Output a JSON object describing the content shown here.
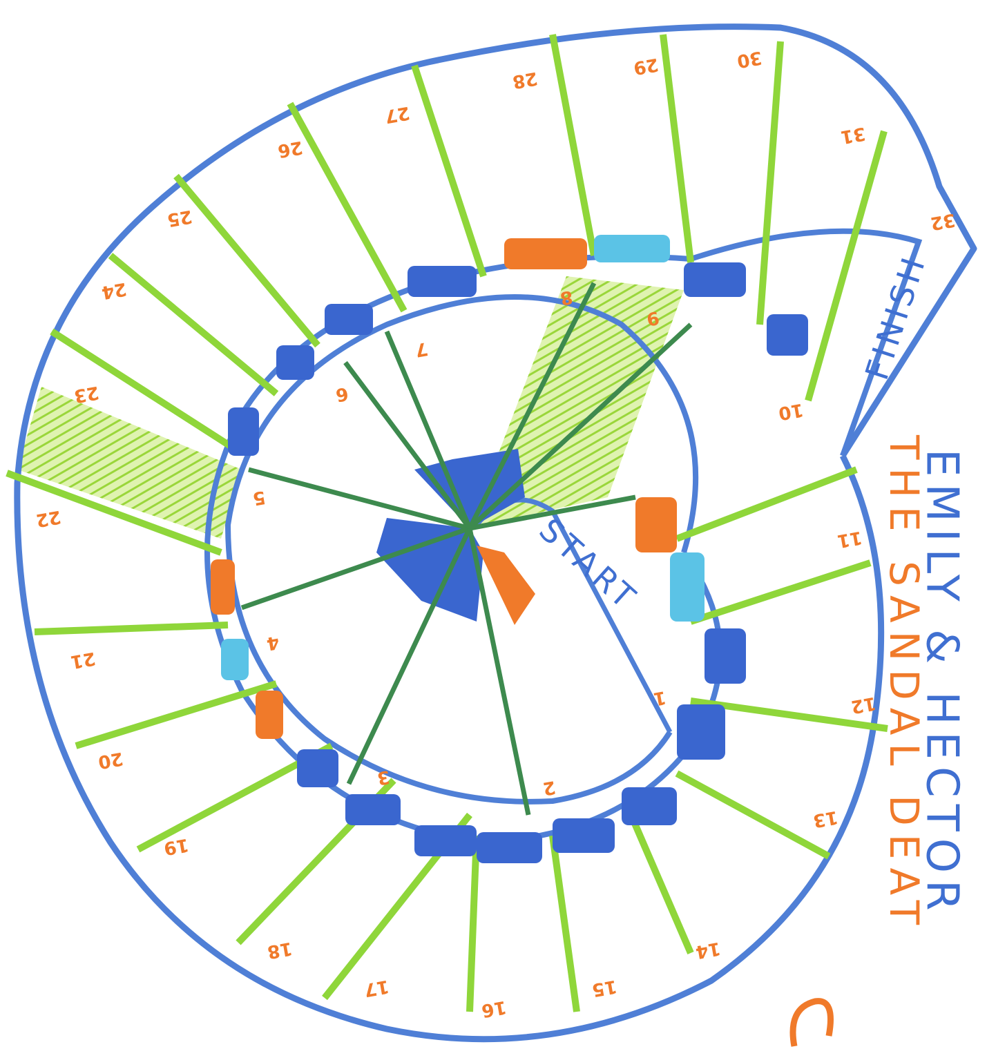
{
  "title": "EMILY & HECTOR",
  "subtitle": "THE SANDAL DEAT",
  "start": "START",
  "finish": "FINISH",
  "spaces": [
    "1",
    "2",
    "3",
    "4",
    "5",
    "6",
    "7",
    "8",
    "9",
    "10",
    "11",
    "12",
    "13",
    "14",
    "15",
    "16",
    "17",
    "18",
    "19",
    "20",
    "21",
    "22",
    "23",
    "24",
    "25",
    "26",
    "27",
    "28",
    "29",
    "30",
    "31",
    "32"
  ]
}
